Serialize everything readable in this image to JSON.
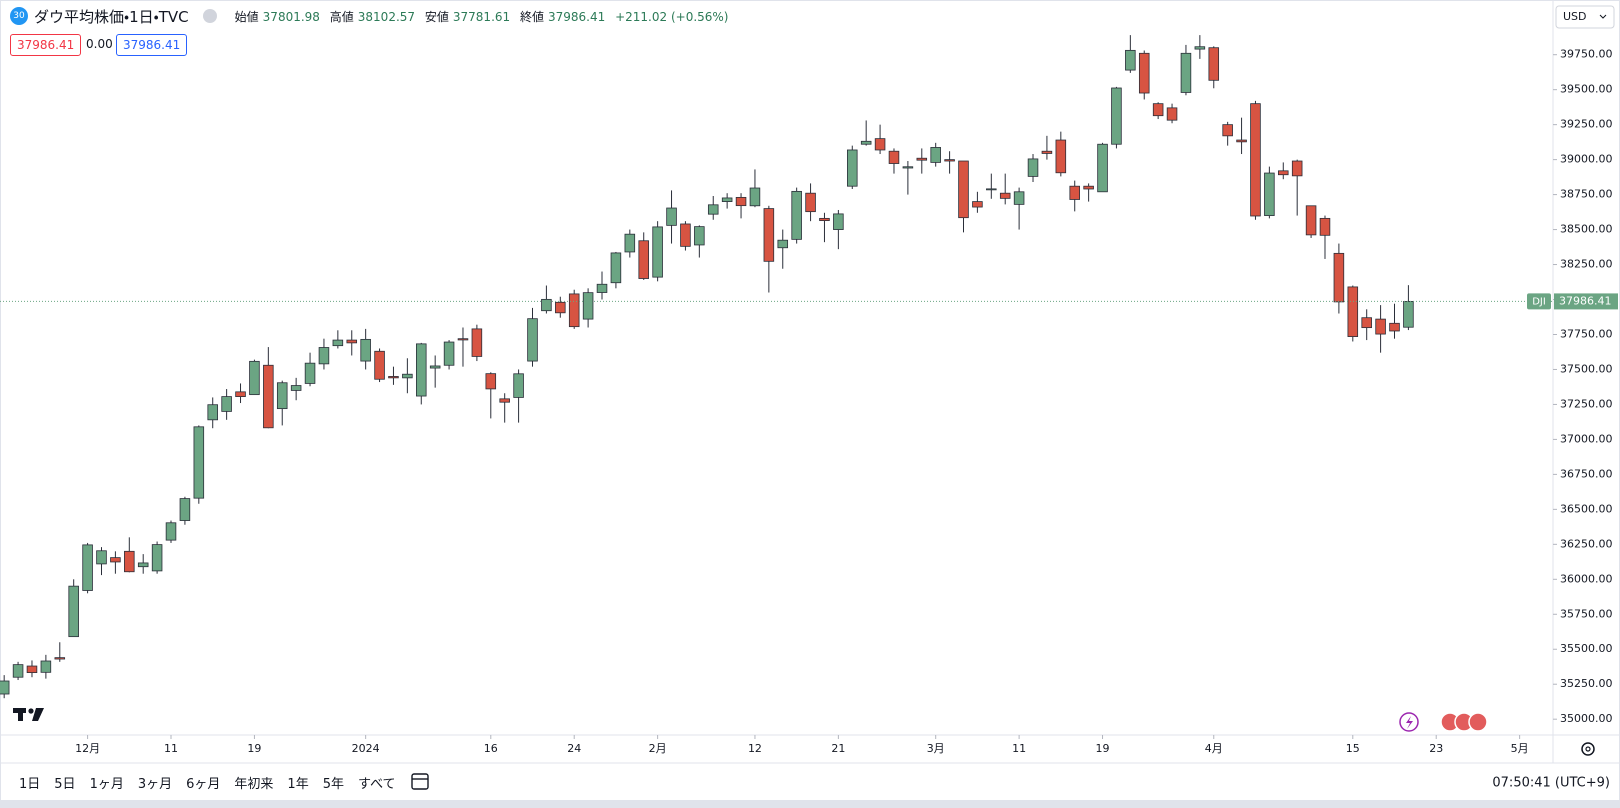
{
  "header": {
    "badge": "30",
    "title": "ダウ平均株価・1日・TVC",
    "labels": {
      "open": "始値",
      "high": "高値",
      "low": "安値",
      "close": "終値"
    },
    "change": "+211.02 (+0.56%)",
    "spread": "0.00",
    "currency": "USD",
    "symbol": "DJI"
  },
  "chart_data": {
    "type": "candlestick",
    "up_color": "#6ba583",
    "down_color": "#d75442",
    "grid": false,
    "xlim": [
      -0.3,
      111.4
    ],
    "ylim": [
      34897,
      40141
    ],
    "yticks": [
      {
        "value": 35000,
        "label": "35000.00"
      },
      {
        "value": 35250,
        "label": "35250.00"
      },
      {
        "value": 35500,
        "label": "35500.00"
      },
      {
        "value": 35750,
        "label": "35750.00"
      },
      {
        "value": 36000,
        "label": "36000.00"
      },
      {
        "value": 36250,
        "label": "36250.00"
      },
      {
        "value": 36500,
        "label": "36500.00"
      },
      {
        "value": 36750,
        "label": "36750.00"
      },
      {
        "value": 37000,
        "label": "37000.00"
      },
      {
        "value": 37250,
        "label": "37250.00"
      },
      {
        "value": 37500,
        "label": "37500.00"
      },
      {
        "value": 37750,
        "label": "37750.00"
      },
      {
        "value": 38000,
        "label": "38000.00"
      },
      {
        "value": 38250,
        "label": "38250.00"
      },
      {
        "value": 38500,
        "label": "38500.00"
      },
      {
        "value": 38750,
        "label": "38750.00"
      },
      {
        "value": 39000,
        "label": "39000.00"
      },
      {
        "value": 39250,
        "label": "39250.00"
      },
      {
        "value": 39500,
        "label": "39500.00"
      },
      {
        "value": 39750,
        "label": "39750.00"
      }
    ],
    "xticks": [
      {
        "value": 6,
        "label": "12月"
      },
      {
        "value": 12,
        "label": "11"
      },
      {
        "value": 18,
        "label": "19"
      },
      {
        "value": 26,
        "label": "2024"
      },
      {
        "value": 35,
        "label": "16"
      },
      {
        "value": 41,
        "label": "24"
      },
      {
        "value": 47,
        "label": "2月"
      },
      {
        "value": 54,
        "label": "12"
      },
      {
        "value": 60,
        "label": "21"
      },
      {
        "value": 67,
        "label": "3月"
      },
      {
        "value": 73,
        "label": "11"
      },
      {
        "value": 79,
        "label": "19"
      },
      {
        "value": 87,
        "label": "4月"
      },
      {
        "value": 97,
        "label": "15"
      },
      {
        "value": 103,
        "label": "23"
      },
      {
        "value": 109,
        "label": "5月"
      }
    ],
    "open": [
      35180,
      35300,
      35380,
      35335,
      35440,
      35590,
      35920,
      36110,
      36155,
      36200,
      36090,
      36060,
      36280,
      36420,
      36580,
      37140,
      37200,
      37340,
      37320,
      37530,
      37220,
      37350,
      37400,
      37540,
      37670,
      37710,
      37560,
      37630,
      37450,
      37440,
      37310,
      37510,
      37530,
      37720,
      37790,
      37470,
      37290,
      37300,
      37560,
      37920,
      37980,
      38040,
      37860,
      38050,
      38120,
      38340,
      38420,
      38160,
      38530,
      38540,
      38390,
      38610,
      38700,
      38730,
      38670,
      38650,
      38370,
      38430,
      38760,
      38580,
      38500,
      38810,
      39110,
      39150,
      39060,
      38940,
      39010,
      38980,
      39000,
      38990,
      38700,
      38790,
      38760,
      38680,
      38880,
      39060,
      39140,
      38810,
      38810,
      38770,
      39110,
      39640,
      39760,
      39400,
      39370,
      39480,
      39790,
      39800,
      39250,
      39140,
      39400,
      38600,
      38920,
      38990,
      38670,
      38580,
      38330,
      38090,
      37870,
      37860,
      37830,
      37801.98
    ],
    "high": [
      35315,
      35410,
      35420,
      35460,
      35550,
      36000,
      36260,
      36230,
      36200,
      36300,
      36180,
      36270,
      36420,
      36590,
      37100,
      37300,
      37360,
      37400,
      37570,
      37660,
      37420,
      37440,
      37620,
      37720,
      37780,
      37780,
      37790,
      37650,
      37520,
      37580,
      37690,
      37600,
      37710,
      37800,
      37820,
      37480,
      37330,
      37500,
      37940,
      38100,
      38020,
      38070,
      38080,
      38200,
      38340,
      38500,
      38480,
      38560,
      38780,
      38560,
      38530,
      38740,
      38760,
      38760,
      38930,
      38670,
      38500,
      38800,
      38830,
      38620,
      38640,
      39100,
      39280,
      39250,
      39080,
      38990,
      39080,
      39120,
      39060,
      38990,
      38770,
      38900,
      38900,
      38800,
      39040,
      39170,
      39200,
      38850,
      38830,
      39120,
      39520,
      39890,
      39780,
      39410,
      39400,
      39820,
      39890,
      39810,
      39270,
      39300,
      39420,
      38950,
      38980,
      39000,
      38670,
      38600,
      38400,
      38100,
      37930,
      37960,
      37970,
      38102.57
    ],
    "low": [
      35150,
      35280,
      35300,
      35290,
      35410,
      35590,
      35900,
      36030,
      36040,
      36050,
      36040,
      36040,
      36260,
      36390,
      36540,
      37080,
      37140,
      37260,
      37320,
      37080,
      37100,
      37280,
      37380,
      37500,
      37650,
      37600,
      37500,
      37410,
      37390,
      37330,
      37250,
      37370,
      37500,
      37520,
      37560,
      37150,
      37120,
      37120,
      37520,
      37900,
      37870,
      37790,
      37800,
      38000,
      38080,
      38300,
      38140,
      38130,
      38400,
      38350,
      38300,
      38570,
      38650,
      38580,
      38660,
      38050,
      38220,
      38400,
      38560,
      38410,
      38360,
      38790,
      39100,
      39040,
      38900,
      38750,
      38900,
      38950,
      38900,
      38480,
      38620,
      38720,
      38680,
      38500,
      38840,
      39000,
      38880,
      38630,
      38700,
      38770,
      39080,
      39620,
      39430,
      39290,
      39260,
      39460,
      39720,
      39510,
      39100,
      39040,
      38570,
      38580,
      38860,
      38600,
      38440,
      38290,
      37900,
      37700,
      37710,
      37620,
      37720,
      37781.61
    ],
    "close": [
      35273,
      35390,
      35333,
      35416,
      35430,
      35951,
      36246,
      36204,
      36124,
      36054,
      36117,
      36248,
      36404,
      36577,
      37090,
      37248,
      37306,
      37306,
      37558,
      37083,
      37405,
      37385,
      37545,
      37657,
      37710,
      37690,
      37715,
      37430,
      37440,
      37466,
      37683,
      37525,
      37696,
      37711,
      37593,
      37361,
      37266,
      37469,
      37863,
      38001,
      37905,
      37806,
      38049,
      38109,
      38333,
      38467,
      38150,
      38519,
      38654,
      38380,
      38521,
      38677,
      38726,
      38671,
      38797,
      38273,
      38424,
      38773,
      38628,
      38564,
      38612,
      39069,
      39131,
      39069,
      38972,
      38949,
      38996,
      39087,
      38990,
      38585,
      38661,
      38791,
      38723,
      38770,
      39005,
      39044,
      38906,
      38715,
      38790,
      39110,
      39512,
      39781,
      39476,
      39314,
      39282,
      39760,
      39807,
      39567,
      39170,
      39127,
      38597,
      38904,
      38892,
      38884,
      38462,
      38459,
      37983,
      37735,
      37799,
      37753,
      37775,
      37986.41
    ]
  },
  "toolbar": {
    "ranges": [
      "1日",
      "5日",
      "1ヶ月",
      "3ヶ月",
      "6ヶ月",
      "年初来",
      "1年",
      "5年",
      "すべて"
    ],
    "clock": "07:50:41 (UTC+9)"
  }
}
